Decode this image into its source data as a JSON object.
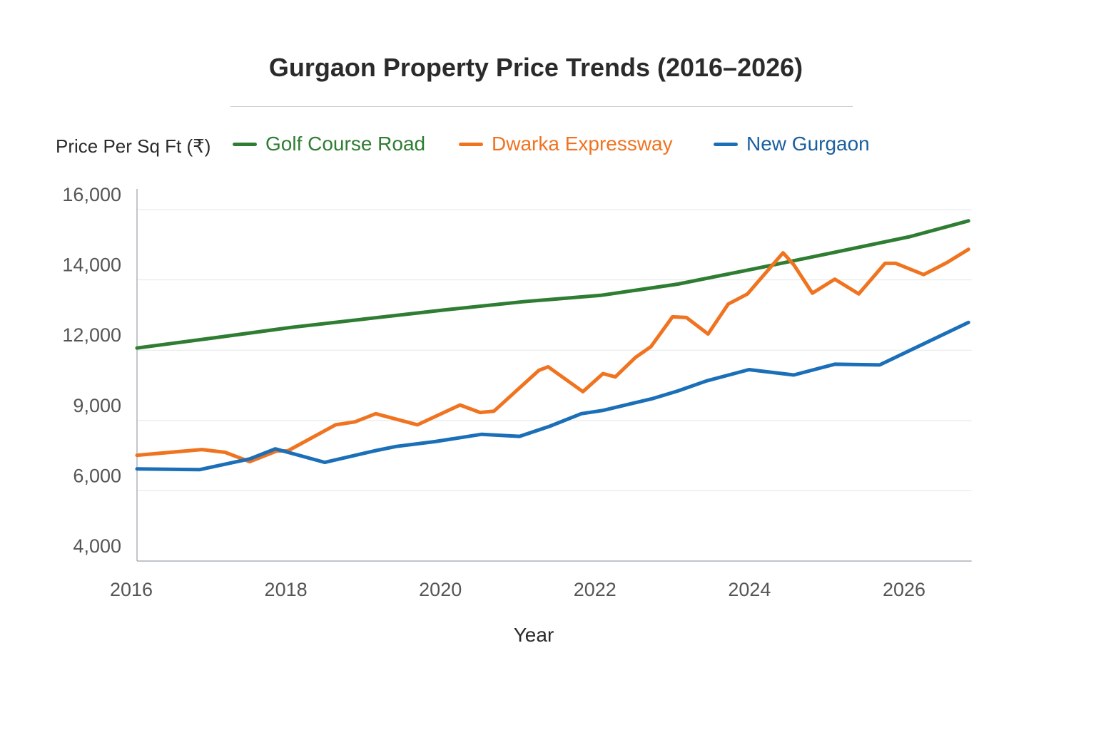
{
  "chart_data": {
    "type": "line",
    "title": "Gurgaon Property Price Trends (2016–2026)",
    "xlabel": "Year",
    "ylabel": "Price Per Sq Ft (₹)",
    "x_ticks": [
      "2016",
      "2018",
      "2020",
      "2022",
      "2024",
      "2026"
    ],
    "y_ticks": [
      "4,000",
      "6,000",
      "9,000",
      "12,000",
      "14,000",
      "16,000"
    ],
    "y_tick_values": [
      4000,
      6000,
      9000,
      12000,
      14000,
      16000
    ],
    "y_scale": "non-uniform (evenly spaced tick labels)",
    "xlim": [
      2016,
      2026.8
    ],
    "ylim": [
      4000,
      16000
    ],
    "grid": "horizontal",
    "legend_position": "top",
    "series": [
      {
        "name": "Golf Course Road",
        "color": "#2e7d32",
        "points": [
          [
            2016,
            12060
          ],
          [
            2017,
            12350
          ],
          [
            2018,
            12650
          ],
          [
            2019,
            12900
          ],
          [
            2020,
            13150
          ],
          [
            2021,
            13380
          ],
          [
            2022,
            13560
          ],
          [
            2023,
            13880
          ],
          [
            2024,
            14320
          ],
          [
            2025,
            14770
          ],
          [
            2026,
            15230
          ],
          [
            2026.76,
            15680
          ]
        ]
      },
      {
        "name": "Dwarka Expressway",
        "color": "#f07320",
        "points": [
          [
            2016,
            7515
          ],
          [
            2016.84,
            7760
          ],
          [
            2017.14,
            7640
          ],
          [
            2017.46,
            7240
          ],
          [
            2017.81,
            7700
          ],
          [
            2017.95,
            7700
          ],
          [
            2018.57,
            8815
          ],
          [
            2018.82,
            8940
          ],
          [
            2019.09,
            9290
          ],
          [
            2019.63,
            8815
          ],
          [
            2020.18,
            9660
          ],
          [
            2020.44,
            9340
          ],
          [
            2020.62,
            9400
          ],
          [
            2021.2,
            11140
          ],
          [
            2021.32,
            11290
          ],
          [
            2021.77,
            10230
          ],
          [
            2022.03,
            11000
          ],
          [
            2022.19,
            10860
          ],
          [
            2022.45,
            11690
          ],
          [
            2022.65,
            12100
          ],
          [
            2022.93,
            12950
          ],
          [
            2023.11,
            12930
          ],
          [
            2023.39,
            12460
          ],
          [
            2023.65,
            13310
          ],
          [
            2023.9,
            13600
          ],
          [
            2024.36,
            14770
          ],
          [
            2024.5,
            14430
          ],
          [
            2024.74,
            13620
          ],
          [
            2025.03,
            14020
          ],
          [
            2025.34,
            13600
          ],
          [
            2025.68,
            14470
          ],
          [
            2025.82,
            14470
          ],
          [
            2026.18,
            14150
          ],
          [
            2026.48,
            14490
          ],
          [
            2026.76,
            14870
          ]
        ]
      },
      {
        "name": "New Gurgaon",
        "color": "#1a6fb8",
        "points": [
          [
            2016,
            6930
          ],
          [
            2016.81,
            6900
          ],
          [
            2017.46,
            7360
          ],
          [
            2017.79,
            7790
          ],
          [
            2018.43,
            7210
          ],
          [
            2019.07,
            7700
          ],
          [
            2019.35,
            7890
          ],
          [
            2019.86,
            8100
          ],
          [
            2020.46,
            8410
          ],
          [
            2020.95,
            8320
          ],
          [
            2021.34,
            8750
          ],
          [
            2021.75,
            9290
          ],
          [
            2022.03,
            9430
          ],
          [
            2022.68,
            9940
          ],
          [
            2023.0,
            10260
          ],
          [
            2023.37,
            10690
          ],
          [
            2023.92,
            11170
          ],
          [
            2024.5,
            10940
          ],
          [
            2025.03,
            11400
          ],
          [
            2025.61,
            11370
          ],
          [
            2025.95,
            11910
          ],
          [
            2026.76,
            12790
          ]
        ]
      }
    ]
  }
}
